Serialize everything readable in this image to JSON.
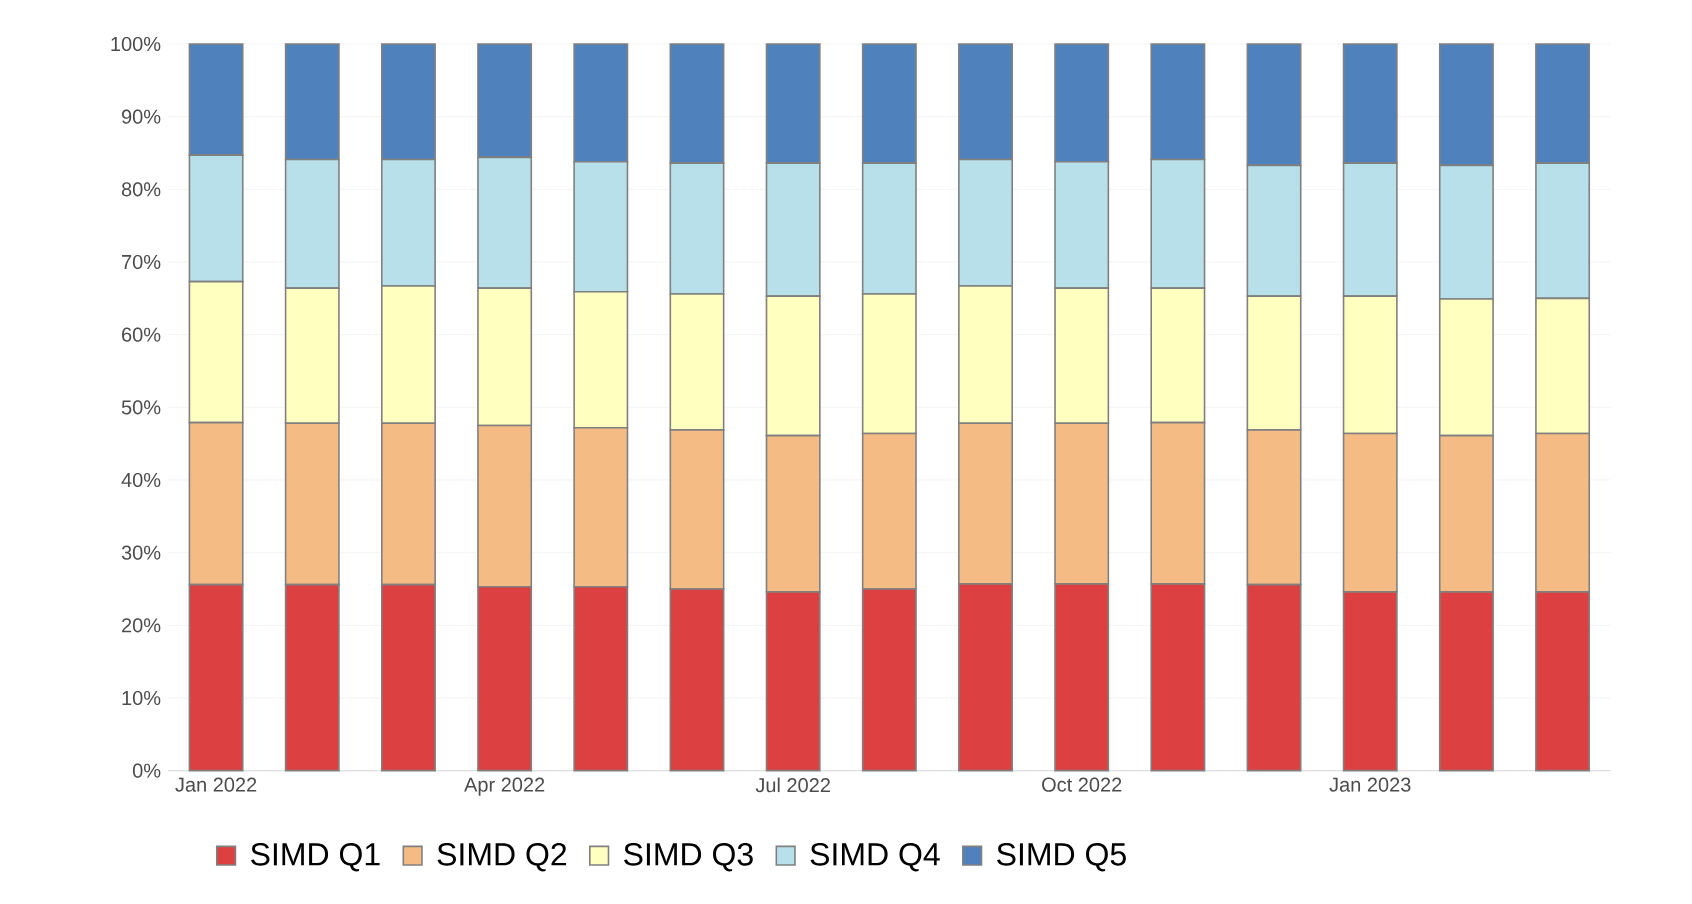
{
  "chart_data": {
    "type": "bar",
    "stacked": true,
    "categories": [
      "Jan 2022",
      null,
      null,
      "Apr 2022",
      null,
      null,
      "Jul 2022",
      null,
      null,
      "Oct 2022",
      null,
      null,
      "Jan 2023",
      null,
      null
    ],
    "series": [
      {
        "name": "SIMD Q1",
        "color": "#dc4040",
        "values": [
          25.6,
          25.6,
          25.6,
          25.3,
          25.3,
          25.0,
          24.6,
          25.0,
          25.7,
          25.7,
          25.7,
          25.6,
          24.6,
          24.6,
          24.6
        ]
      },
      {
        "name": "SIMD Q2",
        "color": "#f5bb85",
        "values": [
          22.3,
          22.2,
          22.2,
          22.2,
          21.9,
          21.9,
          21.5,
          21.4,
          22.1,
          22.1,
          22.2,
          21.3,
          21.8,
          21.5,
          21.8
        ]
      },
      {
        "name": "SIMD Q3",
        "color": "#ffffc0",
        "values": [
          19.4,
          18.6,
          18.9,
          18.9,
          18.7,
          18.7,
          19.2,
          19.2,
          18.9,
          18.6,
          18.5,
          18.4,
          18.9,
          18.8,
          18.6
        ]
      },
      {
        "name": "SIMD Q4",
        "color": "#b7e0ea",
        "values": [
          17.4,
          17.7,
          17.4,
          18.0,
          17.9,
          18.0,
          18.3,
          18.0,
          17.4,
          17.4,
          17.7,
          18.0,
          18.3,
          18.4,
          18.6
        ]
      },
      {
        "name": "SIMD Q5",
        "color": "#4f81bd",
        "values": [
          15.3,
          15.9,
          15.9,
          15.6,
          16.2,
          16.4,
          16.4,
          16.4,
          15.9,
          16.2,
          15.9,
          16.7,
          16.4,
          16.7,
          16.4
        ]
      }
    ],
    "ylim": [
      0,
      100
    ],
    "yticks": [
      {
        "value": 0,
        "label": "0%"
      },
      {
        "value": 10,
        "label": "10%"
      },
      {
        "value": 20,
        "label": "20%"
      },
      {
        "value": 30,
        "label": "30%"
      },
      {
        "value": 40,
        "label": "40%"
      },
      {
        "value": 50,
        "label": "50%"
      },
      {
        "value": 60,
        "label": "60%"
      },
      {
        "value": 70,
        "label": "70%"
      },
      {
        "value": 80,
        "label": "80%"
      },
      {
        "value": 90,
        "label": "90%"
      },
      {
        "value": 100,
        "label": "100%"
      }
    ],
    "grid": "y",
    "legend": "bottom"
  }
}
